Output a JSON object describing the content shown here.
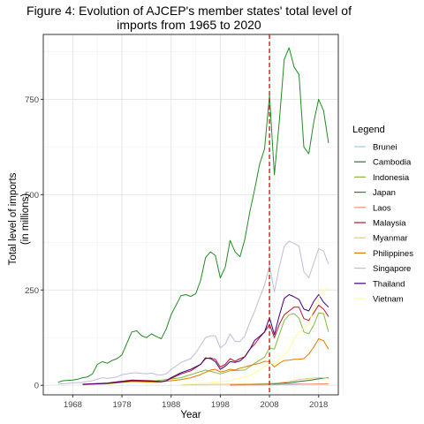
{
  "chart_data": {
    "type": "line",
    "title_line1": "Figure 4: Evolution of AJCEP's member states' total level of",
    "title_line2": "imports from 1965 to 2020",
    "xlabel": "Year",
    "ylabel_line1": "Total level of imports",
    "ylabel_line2": "(in millions)",
    "xlim": [
      1962,
      2022
    ],
    "ylim": [
      -25,
      920
    ],
    "x_ticks": [
      1968,
      1978,
      1988,
      1998,
      2008,
      2018
    ],
    "y_ticks": [
      0,
      250,
      500,
      750
    ],
    "grid": true,
    "vline": {
      "x": 2008,
      "color": "#e41a1c",
      "style": "dashed"
    },
    "legend": {
      "title": "Legend",
      "placement": "right"
    },
    "series": [
      {
        "name": "Brunei",
        "color": "#9ecae1",
        "x": [
          2000,
          2004,
          2008,
          2010,
          2012,
          2014,
          2016,
          2018,
          2019,
          2020
        ],
        "y": [
          1,
          2,
          3,
          3,
          4,
          4,
          3,
          3,
          3,
          3
        ]
      },
      {
        "name": "Cambodia",
        "color": "#1b7837",
        "x": [
          2000,
          2004,
          2008,
          2010,
          2012,
          2014,
          2016,
          2018,
          2019,
          2020
        ],
        "y": [
          1,
          2,
          4,
          5,
          7,
          10,
          13,
          17,
          19,
          20
        ]
      },
      {
        "name": "Indonesia",
        "color": "#7fbc41",
        "x": [
          1970,
          1975,
          1980,
          1985,
          1990,
          1995,
          1998,
          2000,
          2003,
          2005,
          2007,
          2008,
          2009,
          2010,
          2011,
          2012,
          2013,
          2014,
          2015,
          2016,
          2017,
          2018,
          2019,
          2020
        ],
        "y": [
          2,
          4,
          10,
          12,
          20,
          40,
          30,
          38,
          40,
          58,
          74,
          98,
          95,
          133,
          170,
          185,
          188,
          176,
          140,
          135,
          158,
          190,
          188,
          140
        ]
      },
      {
        "name": "Japan",
        "color": "#228b22",
        "x": [
          1965,
          1966,
          1967,
          1968,
          1969,
          1970,
          1971,
          1972,
          1973,
          1974,
          1975,
          1976,
          1977,
          1978,
          1979,
          1980,
          1981,
          1982,
          1983,
          1984,
          1985,
          1986,
          1987,
          1988,
          1989,
          1990,
          1991,
          1992,
          1993,
          1994,
          1995,
          1996,
          1997,
          1998,
          1999,
          2000,
          2001,
          2002,
          2003,
          2004,
          2005,
          2006,
          2007,
          2008,
          2009,
          2010,
          2011,
          2012,
          2013,
          2014,
          2015,
          2016,
          2017,
          2018,
          2019,
          2020
        ],
        "y": [
          8,
          12,
          13,
          14,
          16,
          20,
          22,
          30,
          55,
          62,
          58,
          65,
          70,
          80,
          110,
          140,
          143,
          130,
          125,
          135,
          128,
          122,
          148,
          185,
          210,
          235,
          238,
          233,
          240,
          275,
          335,
          350,
          340,
          282,
          310,
          380,
          350,
          337,
          383,
          455,
          515,
          580,
          620,
          760,
          552,
          692,
          855,
          885,
          835,
          815,
          625,
          607,
          690,
          750,
          720,
          635
        ]
      },
      {
        "name": "Laos",
        "color": "#fc9272",
        "x": [
          2000,
          2004,
          2008,
          2010,
          2012,
          2014,
          2016,
          2018,
          2019,
          2020
        ],
        "y": [
          0,
          1,
          1,
          2,
          2,
          3,
          3,
          4,
          4,
          4
        ]
      },
      {
        "name": "Malaysia",
        "color": "#b2182b",
        "x": [
          1970,
          1975,
          1980,
          1984,
          1985,
          1986,
          1987,
          1988,
          1990,
          1992,
          1994,
          1995,
          1996,
          1997,
          1998,
          1999,
          2000,
          2001,
          2002,
          2003,
          2004,
          2005,
          2006,
          2007,
          2008,
          2009,
          2010,
          2011,
          2012,
          2013,
          2014,
          2015,
          2016,
          2017,
          2018,
          2019,
          2020
        ],
        "y": [
          3,
          6,
          14,
          12,
          11,
          10,
          12,
          18,
          30,
          38,
          55,
          70,
          72,
          68,
          48,
          55,
          70,
          63,
          70,
          75,
          95,
          108,
          125,
          140,
          160,
          125,
          160,
          185,
          195,
          205,
          205,
          175,
          170,
          190,
          210,
          200,
          180
        ]
      },
      {
        "name": "Myanmar",
        "color": "#fdbf6f",
        "x": [
          1990,
          1995,
          2000,
          2004,
          2008,
          2010,
          2012,
          2014,
          2016,
          2018,
          2019,
          2020
        ],
        "y": [
          1,
          2,
          3,
          4,
          5,
          7,
          10,
          15,
          18,
          20,
          20,
          18
        ]
      },
      {
        "name": "Philippines",
        "color": "#e07b00",
        "x": [
          1970,
          1975,
          1980,
          1985,
          1988,
          1990,
          1992,
          1994,
          1996,
          1997,
          1998,
          1999,
          2000,
          2001,
          2002,
          2003,
          2004,
          2005,
          2006,
          2007,
          2008,
          2009,
          2010,
          2011,
          2012,
          2013,
          2014,
          2015,
          2016,
          2017,
          2018,
          2019,
          2020
        ],
        "y": [
          2,
          5,
          10,
          8,
          12,
          15,
          20,
          28,
          40,
          42,
          35,
          38,
          42,
          40,
          45,
          48,
          52,
          55,
          58,
          63,
          62,
          48,
          58,
          65,
          66,
          68,
          68,
          70,
          82,
          100,
          122,
          117,
          95
        ]
      },
      {
        "name": "Singapore",
        "color": "#bcbddc",
        "x": [
          1965,
          1970,
          1972,
          1974,
          1975,
          1976,
          1977,
          1978,
          1979,
          1980,
          1981,
          1982,
          1983,
          1984,
          1985,
          1986,
          1987,
          1988,
          1989,
          1990,
          1991,
          1992,
          1993,
          1994,
          1995,
          1996,
          1997,
          1998,
          1999,
          2000,
          2001,
          2002,
          2003,
          2004,
          2005,
          2006,
          2007,
          2008,
          2009,
          2010,
          2011,
          2012,
          2013,
          2014,
          2015,
          2016,
          2017,
          2018,
          2019,
          2020
        ],
        "y": [
          3,
          8,
          12,
          20,
          18,
          20,
          22,
          28,
          30,
          32,
          33,
          31,
          30,
          32,
          28,
          27,
          30,
          42,
          50,
          60,
          65,
          70,
          85,
          105,
          125,
          130,
          130,
          98,
          108,
          135,
          115,
          115,
          130,
          165,
          195,
          230,
          262,
          315,
          245,
          310,
          365,
          378,
          372,
          365,
          298,
          282,
          320,
          358,
          352,
          318
        ]
      },
      {
        "name": "Thailand",
        "color": "#3f007d",
        "x": [
          1970,
          1975,
          1980,
          1984,
          1985,
          1986,
          1987,
          1988,
          1990,
          1992,
          1994,
          1995,
          1996,
          1997,
          1998,
          1999,
          2000,
          2001,
          2002,
          2003,
          2004,
          2005,
          2006,
          2007,
          2008,
          2009,
          2010,
          2011,
          2012,
          2013,
          2014,
          2015,
          2016,
          2017,
          2018,
          2019,
          2020
        ],
        "y": [
          2,
          5,
          12,
          11,
          10,
          9,
          12,
          20,
          33,
          42,
          55,
          72,
          70,
          62,
          42,
          50,
          62,
          60,
          64,
          75,
          94,
          118,
          128,
          140,
          178,
          133,
          183,
          228,
          238,
          232,
          225,
          200,
          195,
          220,
          238,
          218,
          205
        ]
      },
      {
        "name": "Vietnam",
        "color": "#ffff99",
        "x": [
          1990,
          1995,
          2000,
          2004,
          2006,
          2008,
          2009,
          2010,
          2011,
          2012,
          2013,
          2014,
          2015,
          2016,
          2017,
          2018,
          2019,
          2020
        ],
        "y": [
          2,
          6,
          12,
          26,
          40,
          60,
          55,
          70,
          80,
          95,
          120,
          140,
          150,
          160,
          200,
          230,
          250,
          255
        ]
      }
    ]
  }
}
